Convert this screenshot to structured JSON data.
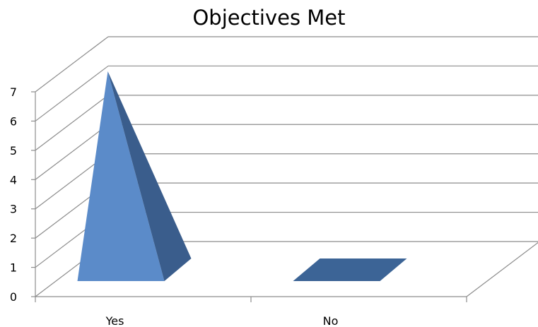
{
  "chart_data": {
    "type": "bar",
    "style": "3d-pyramid",
    "title": "Objectives Met",
    "categories": [
      "Yes",
      "No"
    ],
    "values": [
      7,
      0
    ],
    "xlabel": "",
    "ylabel": "",
    "ylim": [
      0,
      7
    ],
    "yticks": [
      "0",
      "1",
      "2",
      "3",
      "4",
      "5",
      "6",
      "7"
    ],
    "grid": true,
    "legend": false,
    "colors": {
      "front": "#5b8bc9",
      "side": "#3a5d8c",
      "flat": "#3c6496",
      "grid": "#8c8c8c"
    }
  }
}
